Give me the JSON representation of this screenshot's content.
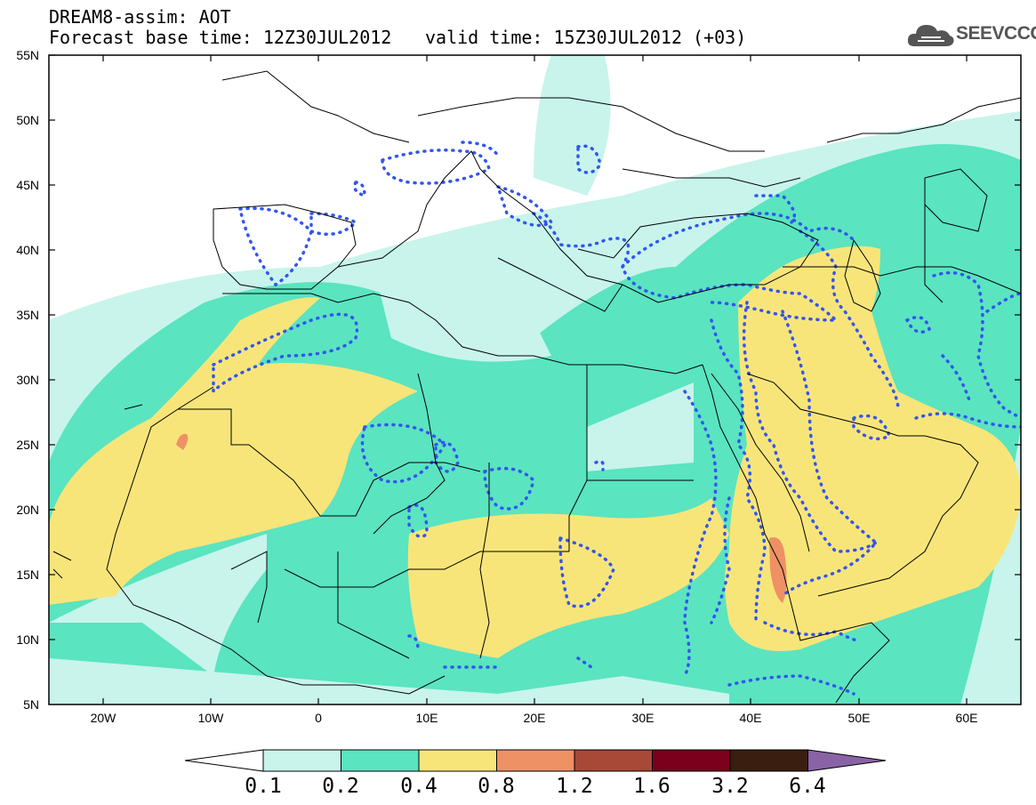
{
  "header": {
    "title_line1": "DREAM8-assim: AOT",
    "title_line2": "Forecast base time: 12Z30JUL2012",
    "valid_time": "valid time: 15Z30JUL2012 (+03)"
  },
  "logo": {
    "text": "SEEVCCC",
    "icon": "cloud-icon",
    "color": "#555555"
  },
  "map": {
    "variable": "AOT",
    "projection": "lat-lon",
    "lon_range": [
      -25,
      65
    ],
    "lat_range": [
      5,
      55
    ],
    "lat_ticks": [
      "55N",
      "50N",
      "45N",
      "40N",
      "35N",
      "30N",
      "25N",
      "20N",
      "15N",
      "10N",
      "5N"
    ],
    "lon_ticks": [
      "20W",
      "10W",
      "0",
      "10E",
      "20E",
      "30E",
      "40E",
      "50E",
      "60E"
    ],
    "contour_line_style": "dotted",
    "contour_line_color": "#3355ee",
    "border_color": "#000000"
  },
  "colorbar": {
    "labels": [
      "0.1",
      "0.2",
      "0.4",
      "0.8",
      "1.2",
      "1.6",
      "3.2",
      "6.4"
    ],
    "colors": [
      "#ffffff",
      "#c8f4ec",
      "#5ae4c0",
      "#f8e57a",
      "#ee9165",
      "#a84836",
      "#7a001c",
      "#3a1e10",
      "#8a62a6"
    ]
  }
}
